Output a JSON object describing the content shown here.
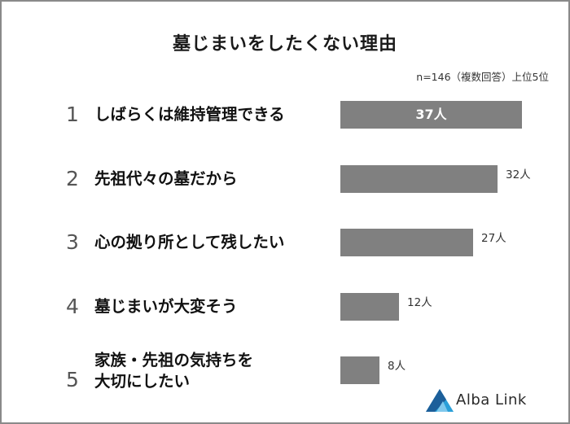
{
  "title": "墓じまいをしたくない理由",
  "note": "n=146（複数回答）上位5位",
  "brand": "Alba Link",
  "colors": {
    "bar": "#808080",
    "logo_blue": "#2a9fd8",
    "logo_dark": "#1c5f9a"
  },
  "chart_data": {
    "type": "bar",
    "orientation": "horizontal",
    "title": "墓じまいをしたくない理由",
    "unit": "人",
    "ranks": [
      "1",
      "2",
      "3",
      "4",
      "5"
    ],
    "categories": [
      "しばらくは維持管理できる",
      "先祖代々の墓だから",
      "心の拠り所として残したい",
      "墓じまいが大変そう",
      "家族・先祖の気持ちを\n大切にしたい"
    ],
    "values": [
      37,
      32,
      27,
      12,
      8
    ],
    "labels": [
      "37人",
      "32人",
      "27人",
      "12人",
      "8人"
    ],
    "value_max": 37
  }
}
